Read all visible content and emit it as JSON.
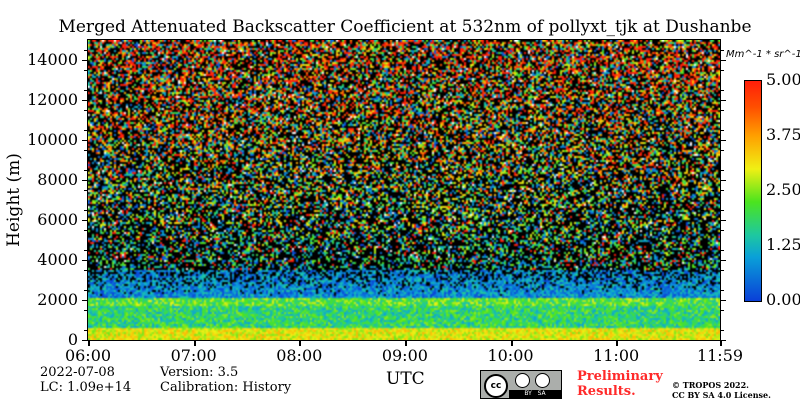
{
  "chart_data": {
    "type": "heatmap",
    "title": "Merged Attenuated Backscatter Coefficient at 532nm of pollyxt_tjk at Dushanbe",
    "xlabel": "UTC",
    "ylabel": "Height (m)",
    "xticks": [
      "06:00",
      "07:00",
      "08:00",
      "09:00",
      "10:00",
      "11:00",
      "11:59"
    ],
    "yticks": [
      "0",
      "2000",
      "4000",
      "6000",
      "8000",
      "10000",
      "12000",
      "14000"
    ],
    "ylim": [
      0,
      15000
    ],
    "xlim": [
      "06:00",
      "11:59"
    ],
    "colorbar": {
      "label": "Mm^-1 * sr^-1",
      "ticks": [
        "0.00",
        "1.25",
        "2.50",
        "3.75",
        "5.00"
      ],
      "range": [
        0,
        5
      ]
    },
    "layers": [
      {
        "height_range": [
          0,
          600
        ],
        "typical_value": 3.0
      },
      {
        "height_range": [
          600,
          1700
        ],
        "typical_value": 1.8
      },
      {
        "height_range": [
          1700,
          2100
        ],
        "typical_value": 2.2
      },
      {
        "height_range": [
          2100,
          3500
        ],
        "typical_value": 0.8
      },
      {
        "height_range": [
          3500,
          15000
        ],
        "typical_value": "noise"
      }
    ]
  },
  "footer": {
    "date": "2022-07-08",
    "lc": "LC: 1.09e+14",
    "version": "Version: 3.5",
    "calibration": "Calibration: History",
    "preliminary": "Preliminary Results.",
    "copyright": "© TROPOS 2022.",
    "license": "CC BY SA 4.0 License.",
    "cc_logo": "cc BY SA"
  }
}
